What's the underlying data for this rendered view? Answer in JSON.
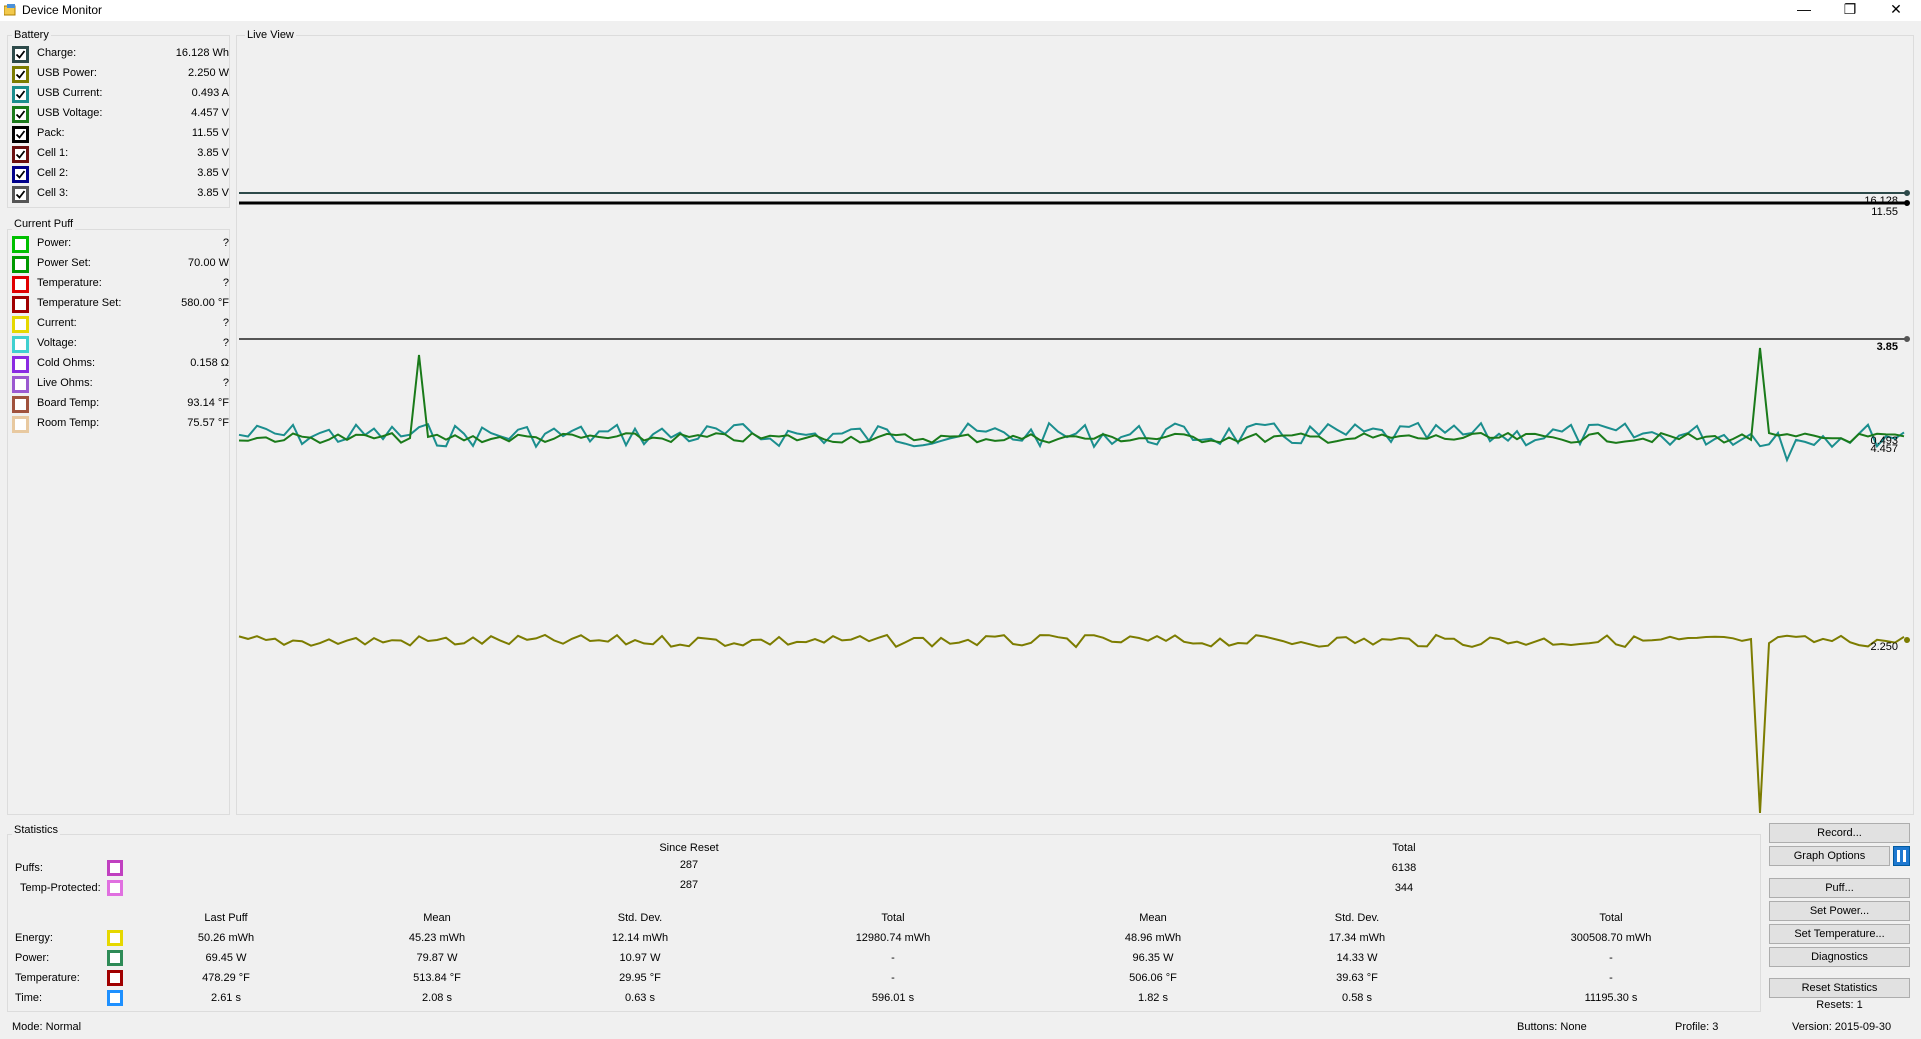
{
  "window": {
    "title": "Device Monitor",
    "controls": [
      "—",
      "❐",
      "✕"
    ]
  },
  "battery": {
    "title": "Battery",
    "items": [
      {
        "label": "Charge:",
        "value": "16.128 Wh",
        "color": "#2d4a4a",
        "checked": true
      },
      {
        "label": "USB Power:",
        "value": "2.250 W",
        "color": "#7c7c00",
        "checked": true
      },
      {
        "label": "USB Current:",
        "value": "0.493 A",
        "color": "#1b8e8e",
        "checked": true
      },
      {
        "label": "USB Voltage:",
        "value": "4.457 V",
        "color": "#1a7a1a",
        "checked": true
      },
      {
        "label": "Pack:",
        "value": "11.55 V",
        "color": "#000000",
        "checked": true
      },
      {
        "label": "Cell 1:",
        "value": "3.85 V",
        "color": "#6b0f0f",
        "checked": true
      },
      {
        "label": "Cell 2:",
        "value": "3.85 V",
        "color": "#00008b",
        "checked": true
      },
      {
        "label": "Cell 3:",
        "value": "3.85 V",
        "color": "#555555",
        "checked": true
      }
    ]
  },
  "current_puff": {
    "title": "Current Puff",
    "items": [
      {
        "label": "Power:",
        "value": "?",
        "color": "#00c000",
        "checked": false
      },
      {
        "label": "Power Set:",
        "value": "70.00 W",
        "color": "#009900",
        "checked": false
      },
      {
        "label": "Temperature:",
        "value": "?",
        "color": "#e00000",
        "checked": false
      },
      {
        "label": "Temperature Set:",
        "value": "580.00 °F",
        "color": "#a00000",
        "checked": false
      },
      {
        "label": "Current:",
        "value": "?",
        "color": "#e6d800",
        "checked": false
      },
      {
        "label": "Voltage:",
        "value": "?",
        "color": "#40d0d0",
        "checked": false
      },
      {
        "label": "Cold Ohms:",
        "value": "0.158 Ω",
        "color": "#8a2be2",
        "checked": false
      },
      {
        "label": "Live Ohms:",
        "value": "?",
        "color": "#9b59d0",
        "checked": false
      },
      {
        "label": "Board Temp:",
        "value": "93.14 °F",
        "color": "#a0523d",
        "checked": false
      },
      {
        "label": "Room Temp:",
        "value": "75.57 °F",
        "color": "#e8c9a0",
        "checked": false
      }
    ]
  },
  "live_view": {
    "title": "Live View",
    "labels": {
      "charge": "16.128",
      "pack": "11.55",
      "cell": "3.85",
      "usb_current": "0.493",
      "usb_voltage": "4.457",
      "usb_power": "2.250"
    },
    "colors": {
      "charge": "#2d4a4a",
      "pack": "#000000",
      "cell": "#555555",
      "usb_current": "#1b8e8e",
      "usb_voltage": "#1a7a1a",
      "usb_power": "#7c7c00"
    }
  },
  "statistics": {
    "title": "Statistics",
    "since_reset_header": "Since Reset",
    "total_header": "Total",
    "puffs": {
      "label": "Puffs:",
      "since_reset": "287",
      "total": "6138",
      "color": "#c040c0"
    },
    "temp_protected": {
      "label": "Temp-Protected:",
      "since_reset": "287",
      "total": "344",
      "color": "#e070e0"
    },
    "columns": [
      "Last Puff",
      "Mean",
      "Std. Dev.",
      "Total",
      "Mean",
      "Std. Dev.",
      "Total"
    ],
    "rows": [
      {
        "label": "Energy:",
        "color": "#e6d800",
        "values": [
          "50.26 mWh",
          "45.23 mWh",
          "12.14 mWh",
          "12980.74 mWh",
          "48.96 mWh",
          "17.34 mWh",
          "300508.70 mWh"
        ]
      },
      {
        "label": "Power:",
        "color": "#2e8b57",
        "values": [
          "69.45 W",
          "79.87 W",
          "10.97 W",
          "-",
          "96.35 W",
          "14.33 W",
          "-"
        ]
      },
      {
        "label": "Temperature:",
        "color": "#a00000",
        "values": [
          "478.29 °F",
          "513.84 °F",
          "29.95 °F",
          "-",
          "506.06 °F",
          "39.63 °F",
          "-"
        ]
      },
      {
        "label": "Time:",
        "color": "#1e90ff",
        "values": [
          "2.61 s",
          "2.08 s",
          "0.63 s",
          "596.01 s",
          "1.82 s",
          "0.58 s",
          "11195.30 s"
        ]
      }
    ]
  },
  "buttons": {
    "record": "Record...",
    "graph_options": "Graph Options",
    "puff": "Puff...",
    "set_power": "Set Power...",
    "set_temperature": "Set Temperature...",
    "diagnostics": "Diagnostics",
    "reset_statistics": "Reset Statistics",
    "resets": "Resets: 1"
  },
  "status": {
    "mode": "Mode: Normal",
    "buttons": "Buttons: None",
    "profile": "Profile: 3",
    "version": "Version: 2015-09-30"
  }
}
